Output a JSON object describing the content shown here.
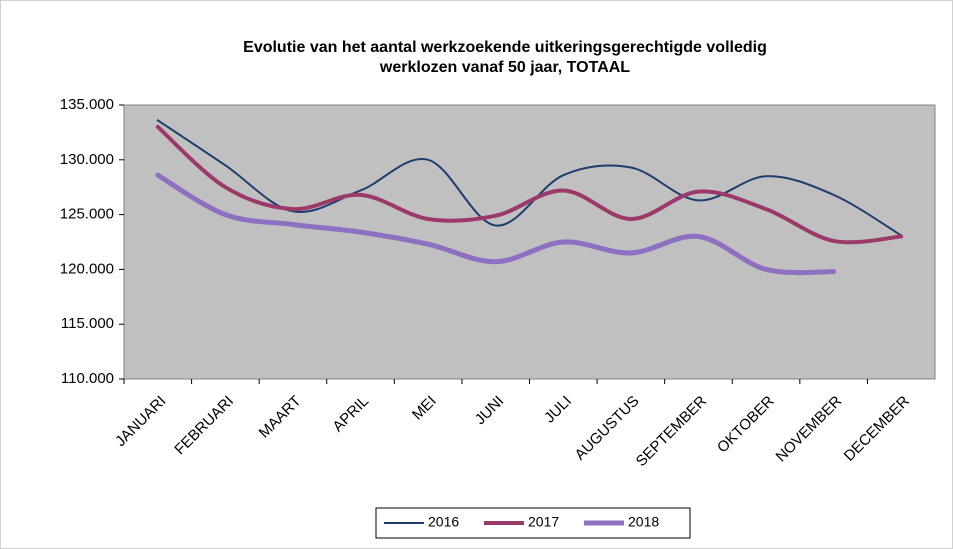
{
  "chart_data": {
    "type": "line",
    "title": [
      "Evolutie van het aantal werkzoekende  uitkeringsgerechtigde volledig",
      "werklozen vanaf 50 jaar, TOTAAL"
    ],
    "categories": [
      "JANUARI",
      "FEBRUARI",
      "MAART",
      "APRIL",
      "MEI",
      "JUNI",
      "JULI",
      "AUGUSTUS",
      "SEPTEMBER",
      "OKTOBER",
      "NOVEMBER",
      "DECEMBER"
    ],
    "series": [
      {
        "name": "2016",
        "color": "#1f3d6e",
        "width": 2,
        "values": [
          133600,
          129500,
          125300,
          127200,
          130000,
          124000,
          128600,
          129300,
          126300,
          128500,
          126800,
          123100
        ]
      },
      {
        "name": "2017",
        "color": "#9b3a6a",
        "width": 4,
        "values": [
          133000,
          127500,
          125500,
          126800,
          124600,
          124900,
          127200,
          124600,
          127100,
          125500,
          122600,
          123000
        ]
      },
      {
        "name": "2018",
        "color": "#8e6fc0",
        "width": 5,
        "values": [
          128600,
          125000,
          124100,
          123400,
          122300,
          120700,
          122500,
          121500,
          123000,
          120000,
          119800,
          null
        ]
      }
    ],
    "ylim": [
      110000,
      135000
    ],
    "yticks": [
      {
        "value": 110000,
        "label": "110.000"
      },
      {
        "value": 115000,
        "label": "115.000"
      },
      {
        "value": 120000,
        "label": "120.000"
      },
      {
        "value": 125000,
        "label": "125.000"
      },
      {
        "value": 130000,
        "label": "130.000"
      },
      {
        "value": 135000,
        "label": "135.000"
      }
    ],
    "grid": false
  }
}
